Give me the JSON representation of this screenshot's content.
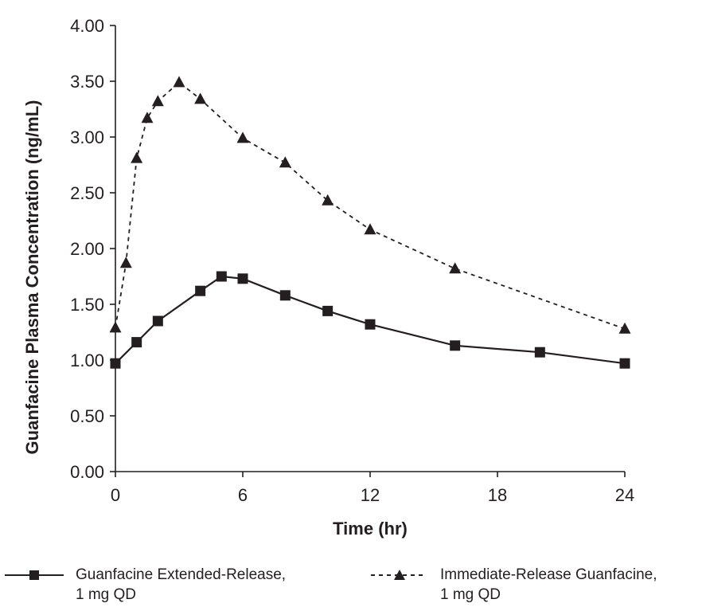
{
  "chart_data": {
    "type": "line",
    "title": "",
    "xlabel": "Time (hr)",
    "ylabel": "Guanfacine Plasma Concentration (ng/mL)",
    "xlim": [
      0,
      24
    ],
    "ylim": [
      0,
      4
    ],
    "xticks": [
      "0",
      "6",
      "12",
      "18",
      "24"
    ],
    "yticks": [
      "0.00",
      "0.50",
      "1.00",
      "1.50",
      "2.00",
      "2.50",
      "3.00",
      "3.50",
      "4.00"
    ],
    "grid": false,
    "legend_position": "bottom",
    "series": [
      {
        "name": "Guanfacine Extended-Release, 1 mg QD",
        "line_style": "solid",
        "marker": "square",
        "color": "#231f20",
        "x": [
          0,
          1,
          2,
          4,
          5,
          6,
          8,
          10,
          12,
          16,
          20,
          24
        ],
        "y": [
          0.97,
          1.16,
          1.35,
          1.62,
          1.75,
          1.73,
          1.58,
          1.44,
          1.32,
          1.13,
          1.07,
          0.97
        ]
      },
      {
        "name": "Immediate-Release Guanfacine, 1 mg QD",
        "line_style": "dashed",
        "marker": "triangle",
        "color": "#231f20",
        "x": [
          0,
          0.5,
          1,
          1.5,
          2,
          3,
          4,
          6,
          8,
          10,
          12,
          16,
          24
        ],
        "y": [
          1.29,
          1.87,
          2.81,
          3.17,
          3.32,
          3.49,
          3.34,
          2.99,
          2.77,
          2.43,
          2.17,
          1.82,
          1.28
        ]
      }
    ]
  },
  "legend": {
    "items": [
      {
        "line1": "Guanfacine Extended-Release,",
        "line2": "1 mg QD"
      },
      {
        "line1": "Immediate-Release Guanfacine,",
        "line2": "1 mg QD"
      }
    ]
  }
}
